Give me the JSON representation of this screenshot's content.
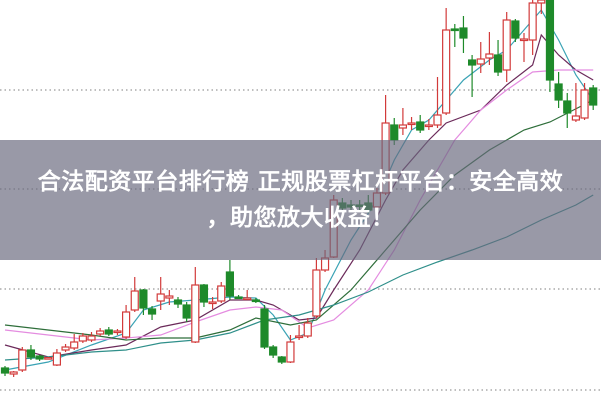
{
  "banner": {
    "line1": "合法配资平台排行榜 正规股票杠杆平台：安全高效",
    "line2": "，助您放大收益！"
  },
  "colors": {
    "up": "#d23a3a",
    "down": "#1e8a2a",
    "ma5": "#3aa3b5",
    "ma10": "#6b2a5a",
    "ma20": "#e48ce0",
    "ma30": "#2e6e3a",
    "ma60": "#2f8f8a",
    "grid": "#999999"
  },
  "chart_data": {
    "type": "candlestick",
    "title": "",
    "grid": "horizontal dotted",
    "ylim": [
      0,
      100
    ],
    "candles_fields": [
      "day",
      "open",
      "close",
      "high",
      "low"
    ],
    "candles": [
      [
        0,
        8,
        6.75,
        8.5,
        6
      ],
      [
        1,
        6.5,
        7,
        7.25,
        5.75
      ],
      [
        2,
        7.5,
        12.5,
        13.25,
        7
      ],
      [
        3,
        12.5,
        10.75,
        13.75,
        10
      ],
      [
        4,
        11,
        10.25,
        11.25,
        9.75
      ],
      [
        5,
        10.5,
        10.6,
        10.75,
        10.25
      ],
      [
        6,
        8.75,
        11.75,
        12.75,
        8.5
      ],
      [
        7,
        12.5,
        13.25,
        14,
        12
      ],
      [
        8,
        13,
        14.5,
        16.5,
        12.5
      ],
      [
        9,
        14.75,
        16,
        16.75,
        14.25
      ],
      [
        10,
        15,
        16,
        17,
        14.5
      ],
      [
        11,
        16.5,
        17.25,
        18,
        16
      ],
      [
        12,
        17.5,
        16.5,
        18.25,
        16
      ],
      [
        13,
        17,
        17.25,
        17.75,
        16.25
      ],
      [
        14,
        15.75,
        22,
        23.75,
        15.25
      ],
      [
        15,
        22.5,
        27.25,
        30.75,
        22
      ],
      [
        16,
        27.5,
        23,
        27.75,
        21.25
      ],
      [
        17,
        22.75,
        21.5,
        23.5,
        20
      ],
      [
        18,
        24.75,
        26.5,
        30.75,
        22.5
      ],
      [
        19,
        25.5,
        26,
        27.5,
        23.75
      ],
      [
        20,
        25,
        24,
        25.75,
        23
      ],
      [
        21,
        23.75,
        20.5,
        24.5,
        19.5
      ],
      [
        22,
        14.5,
        28.75,
        33.25,
        14.25
      ],
      [
        23,
        28.75,
        24.5,
        29,
        23.25
      ],
      [
        24,
        24.5,
        24.5,
        25.75,
        22.75
      ],
      [
        25,
        24.75,
        28.5,
        29.5,
        24.25
      ],
      [
        26,
        32,
        26,
        35,
        25
      ],
      [
        27,
        25.75,
        25.6,
        26.25,
        25.25
      ],
      [
        28,
        25.5,
        25.5,
        27.5,
        25
      ],
      [
        29,
        25,
        24.9,
        25.5,
        24.25
      ],
      [
        30,
        22.75,
        13.25,
        23.75,
        12.75
      ],
      [
        31,
        13.25,
        11.25,
        13.75,
        10.5
      ],
      [
        32,
        10.75,
        9.5,
        11,
        9
      ],
      [
        33,
        9.5,
        14.5,
        16.25,
        9.25
      ],
      [
        34,
        16,
        16,
        18.75,
        15
      ],
      [
        35,
        16,
        19.25,
        20.5,
        15.5
      ],
      [
        36,
        21,
        32.5,
        35.5,
        20.5
      ],
      [
        37,
        32.5,
        35.5,
        37.5,
        32
      ],
      [
        38,
        35.75,
        50,
        51.25,
        35.5
      ],
      [
        39,
        49.25,
        48,
        50.5,
        47
      ],
      [
        40,
        48.75,
        48.25,
        50,
        47.25
      ],
      [
        41,
        48.75,
        48.5,
        50,
        47.5
      ],
      [
        42,
        49.25,
        47.5,
        51.25,
        46.75
      ],
      [
        43,
        48.25,
        51.75,
        53,
        47.5
      ],
      [
        44,
        51.75,
        69.25,
        76.25,
        51.25
      ],
      [
        45,
        68.75,
        65,
        70.5,
        63.75
      ],
      [
        46,
        68,
        68.75,
        73,
        66.25
      ],
      [
        47,
        69,
        69.25,
        70.75,
        67.5
      ],
      [
        48,
        69.5,
        67.5,
        71.25,
        66.75
      ],
      [
        49,
        68.5,
        68.75,
        70.25,
        67.5
      ],
      [
        50,
        68.75,
        71.25,
        80.75,
        68
      ],
      [
        51,
        71.75,
        92.5,
        98,
        71.25
      ],
      [
        52,
        92.75,
        92.6,
        94,
        88.25
      ],
      [
        53,
        93,
        90.5,
        96,
        86.75
      ],
      [
        54,
        85,
        83.75,
        86.25,
        75.75
      ],
      [
        55,
        84,
        85.25,
        89.5,
        81.75
      ],
      [
        56,
        85.5,
        86.5,
        92,
        83.75
      ],
      [
        57,
        86.25,
        82,
        90,
        81
      ],
      [
        58,
        82.5,
        95,
        97,
        79.5
      ],
      [
        59,
        94.75,
        90.5,
        95.25,
        89.5
      ],
      [
        60,
        90,
        90.25,
        91.75,
        84.5
      ],
      [
        61,
        90,
        99.25,
        100,
        86.25
      ],
      [
        62,
        99.25,
        100,
        100,
        96.5
      ],
      [
        63,
        100,
        80,
        100,
        77
      ],
      [
        64,
        79,
        75,
        82,
        73
      ],
      [
        65,
        74.75,
        71.75,
        76.75,
        68
      ],
      [
        66,
        70,
        71,
        79.25,
        69.5
      ],
      [
        67,
        70.5,
        77.5,
        79.25,
        70
      ],
      [
        68,
        78,
        73.75,
        78.75,
        72.5
      ]
    ],
    "moving_averages": [
      {
        "key": "ma5",
        "points": [
          [
            0,
            7.5
          ],
          [
            5,
            9.5
          ],
          [
            10,
            13.75
          ],
          [
            14,
            16.75
          ],
          [
            16,
            22.5
          ],
          [
            19,
            24.5
          ],
          [
            22,
            25
          ],
          [
            26,
            25.75
          ],
          [
            29,
            25.5
          ],
          [
            31,
            21.25
          ],
          [
            33,
            15
          ],
          [
            35,
            16.75
          ],
          [
            37,
            27.5
          ],
          [
            40,
            40
          ],
          [
            43,
            50
          ],
          [
            45,
            60
          ],
          [
            47,
            67.5
          ],
          [
            49,
            70
          ],
          [
            51,
            75
          ],
          [
            53,
            80
          ],
          [
            56,
            85
          ],
          [
            58,
            87.5
          ],
          [
            61,
            95
          ],
          [
            62,
            97.5
          ],
          [
            64,
            90
          ],
          [
            66,
            81.25
          ],
          [
            68,
            75
          ]
        ]
      },
      {
        "key": "ma10",
        "points": [
          [
            0,
            13.75
          ],
          [
            5,
            10.75
          ],
          [
            10,
            12.5
          ],
          [
            14,
            13.75
          ],
          [
            18,
            18.25
          ],
          [
            22,
            20
          ],
          [
            26,
            25
          ],
          [
            29,
            25
          ],
          [
            31,
            23.75
          ],
          [
            34,
            20
          ],
          [
            36,
            20.5
          ],
          [
            38,
            27.5
          ],
          [
            41,
            37.5
          ],
          [
            44,
            50
          ],
          [
            46,
            57.5
          ],
          [
            49,
            65
          ],
          [
            51,
            69.25
          ],
          [
            55,
            72.5
          ],
          [
            58,
            78.75
          ],
          [
            61,
            83.75
          ],
          [
            62,
            91.25
          ],
          [
            64,
            86.25
          ],
          [
            66,
            82.5
          ],
          [
            68,
            80
          ]
        ]
      },
      {
        "key": "ma20",
        "points": [
          [
            0,
            17.5
          ],
          [
            5,
            16.25
          ],
          [
            10,
            15
          ],
          [
            14,
            15.5
          ],
          [
            18,
            16.25
          ],
          [
            22,
            19.5
          ],
          [
            26,
            22.5
          ],
          [
            29,
            23.25
          ],
          [
            32,
            22.5
          ],
          [
            35,
            18
          ],
          [
            38,
            20
          ],
          [
            42,
            27.5
          ],
          [
            45,
            37.5
          ],
          [
            48,
            50
          ],
          [
            52,
            65
          ],
          [
            55,
            72.5
          ],
          [
            58,
            77.5
          ],
          [
            61,
            82
          ],
          [
            64,
            82.5
          ],
          [
            68,
            82.5
          ]
        ]
      },
      {
        "key": "ma30",
        "points": [
          [
            0,
            18.75
          ],
          [
            5,
            17.5
          ],
          [
            10,
            16.25
          ],
          [
            14,
            15
          ],
          [
            18,
            15.5
          ],
          [
            22,
            15.5
          ],
          [
            26,
            17.5
          ],
          [
            29,
            20.5
          ],
          [
            33,
            18.75
          ],
          [
            36,
            20
          ],
          [
            40,
            27.5
          ],
          [
            44,
            37.5
          ],
          [
            48,
            47.5
          ],
          [
            52,
            56.25
          ],
          [
            56,
            62.5
          ],
          [
            60,
            67.5
          ],
          [
            63,
            69.5
          ],
          [
            68,
            75
          ]
        ]
      },
      {
        "key": "ma60",
        "points": [
          [
            0,
            10
          ],
          [
            5,
            10.75
          ],
          [
            10,
            12
          ],
          [
            14,
            12.5
          ],
          [
            18,
            14.25
          ],
          [
            22,
            15
          ],
          [
            26,
            16.75
          ],
          [
            30,
            20
          ],
          [
            34,
            21.25
          ],
          [
            38,
            23.75
          ],
          [
            42,
            27
          ],
          [
            46,
            31.25
          ],
          [
            50,
            34.5
          ],
          [
            54,
            37.5
          ],
          [
            58,
            40.75
          ],
          [
            62,
            45
          ],
          [
            66,
            48.75
          ],
          [
            68,
            51.25
          ]
        ]
      }
    ],
    "gridlines_y": [
      2.5,
      27.75,
      52.75,
      77.5
    ]
  }
}
